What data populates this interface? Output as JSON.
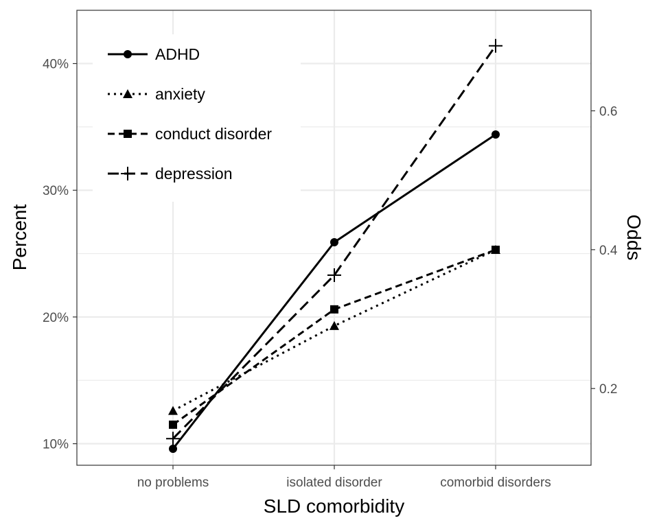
{
  "chart_data": {
    "type": "line",
    "categories": [
      "no problems",
      "isolated disorder",
      "comorbid disorders"
    ],
    "xlabel": "SLD comorbidity",
    "ylabel": "Percent",
    "y2label": "Odds",
    "ylim": [
      8.3,
      44.2
    ],
    "y2lim": [
      0.0895,
      0.7448
    ],
    "yticks": [
      "10%",
      "20%",
      "30%",
      "40%"
    ],
    "ytick_values": [
      10,
      20,
      30,
      40
    ],
    "y2ticks": [
      "0.2",
      "0.4",
      "0.6"
    ],
    "y2tick_values": [
      0.2,
      0.4,
      0.6
    ],
    "grid": true,
    "legend_position": "top-left",
    "series": [
      {
        "name": "ADHD",
        "marker": "circle",
        "dash": "solid",
        "values": [
          9.6,
          25.9,
          34.4
        ]
      },
      {
        "name": "anxiety",
        "marker": "triangle",
        "dash": "dotted",
        "values": [
          12.6,
          19.3,
          25.3
        ]
      },
      {
        "name": "conduct disorder",
        "marker": "square",
        "dash": "dashed",
        "values": [
          11.5,
          20.6,
          25.3
        ]
      },
      {
        "name": "depression",
        "marker": "plus",
        "dash": "longdash",
        "values": [
          10.4,
          23.3,
          41.4
        ]
      }
    ],
    "colors": {
      "line": "#000000",
      "grid": "#ebebeb",
      "panel_border": "#333333",
      "tick_text": "#4d4d4d"
    }
  }
}
